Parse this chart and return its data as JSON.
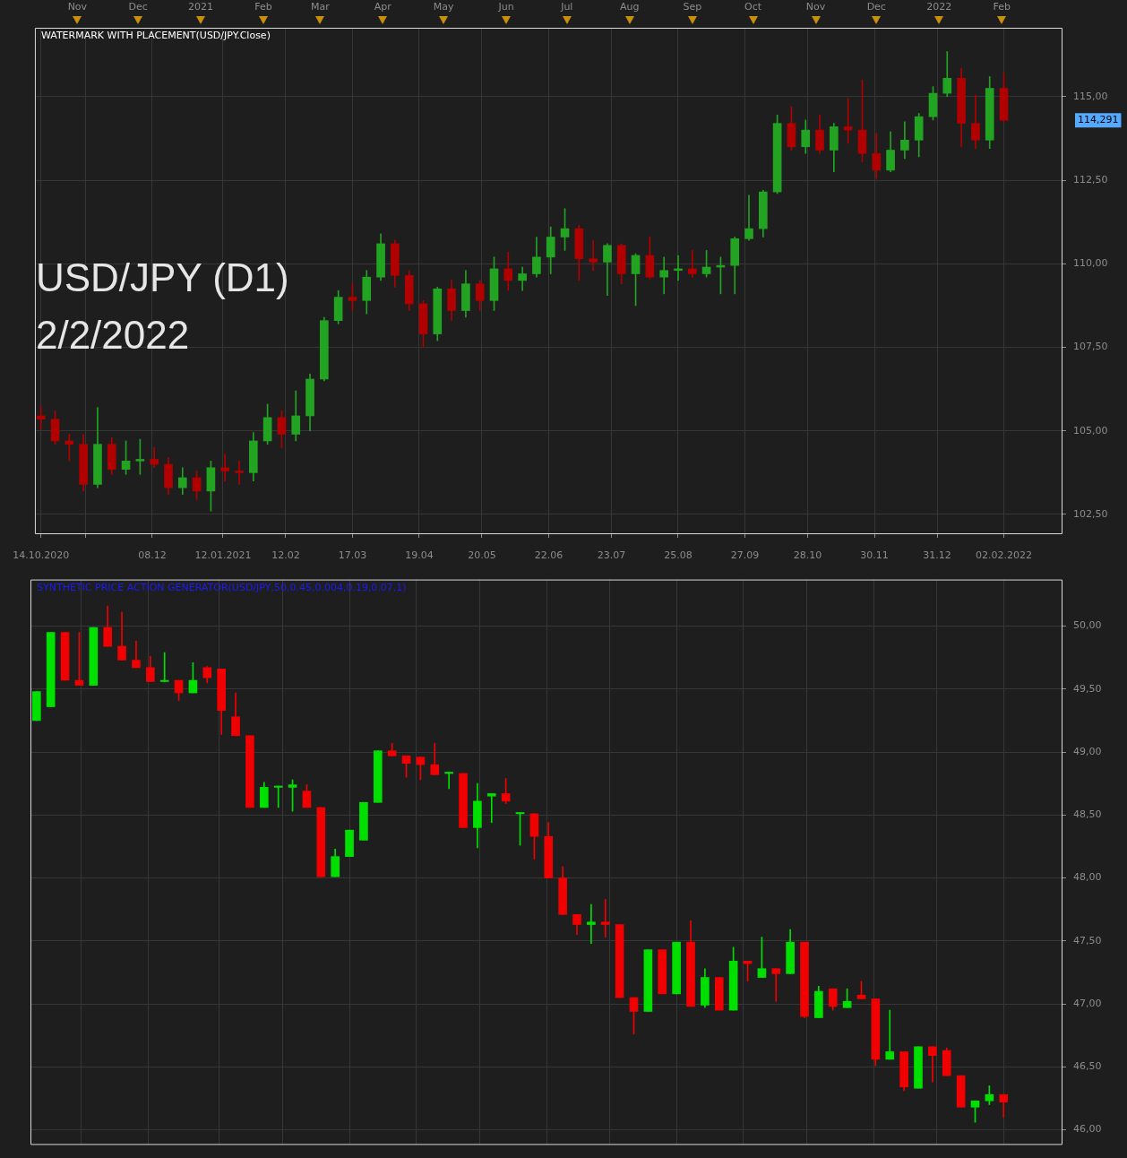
{
  "chart_data": [
    {
      "type": "candlestick",
      "title": "WATERMARK WITH PLACEMENT(USD/JPY.Close)",
      "x": [
        "2020-10-14",
        "2020-10-21",
        "2020-10-28",
        "2020-11-04",
        "2020-11-11",
        "2020-11-18",
        "2020-11-25",
        "2020-12-02",
        "2020-12-09",
        "2020-12-16",
        "2020-12-23",
        "2020-12-30",
        "2021-01-06",
        "2021-01-13",
        "2021-01-20",
        "2021-01-27",
        "2021-02-03",
        "2021-02-10",
        "2021-02-17",
        "2021-02-24",
        "2021-03-03",
        "2021-03-10",
        "2021-03-17",
        "2021-03-24",
        "2021-03-31",
        "2021-04-07",
        "2021-04-14",
        "2021-04-21",
        "2021-04-28",
        "2021-05-05",
        "2021-05-12",
        "2021-05-19",
        "2021-05-26",
        "2021-06-02",
        "2021-06-09",
        "2021-06-16",
        "2021-06-23",
        "2021-06-30",
        "2021-07-07",
        "2021-07-14",
        "2021-07-21",
        "2021-07-28",
        "2021-08-04",
        "2021-08-11",
        "2021-08-18",
        "2021-08-25",
        "2021-09-01",
        "2021-09-08",
        "2021-09-15",
        "2021-09-22",
        "2021-09-29",
        "2021-10-06",
        "2021-10-13",
        "2021-10-20",
        "2021-10-27",
        "2021-11-03",
        "2021-11-10",
        "2021-11-17",
        "2021-11-24",
        "2021-12-01",
        "2021-12-08",
        "2021-12-15",
        "2021-12-22",
        "2021-12-29",
        "2022-01-05",
        "2022-01-12",
        "2022-01-19",
        "2022-01-26",
        "2022-02-02"
      ],
      "ohlc": [
        [
          105.45,
          105.75,
          105.05,
          105.35
        ],
        [
          105.35,
          105.6,
          104.6,
          104.7
        ],
        [
          104.7,
          104.9,
          104.1,
          104.6
        ],
        [
          104.6,
          104.9,
          103.2,
          103.4
        ],
        [
          103.4,
          105.7,
          103.3,
          104.6
        ],
        [
          104.6,
          104.8,
          103.7,
          103.85
        ],
        [
          103.85,
          104.7,
          103.7,
          104.1
        ],
        [
          104.1,
          104.75,
          103.7,
          104.15
        ],
        [
          104.15,
          104.5,
          103.9,
          104.0
        ],
        [
          104.0,
          104.2,
          103.1,
          103.3
        ],
        [
          103.3,
          103.9,
          103.1,
          103.6
        ],
        [
          103.6,
          103.8,
          102.95,
          103.2
        ],
        [
          103.2,
          104.1,
          102.6,
          103.9
        ],
        [
          103.9,
          104.3,
          103.5,
          103.8
        ],
        [
          103.8,
          104.1,
          103.4,
          103.75
        ],
        [
          103.75,
          104.95,
          103.5,
          104.7
        ],
        [
          104.7,
          105.8,
          104.6,
          105.4
        ],
        [
          105.4,
          105.6,
          104.5,
          104.9
        ],
        [
          104.9,
          106.2,
          104.7,
          105.45
        ],
        [
          105.45,
          106.7,
          105.0,
          106.55
        ],
        [
          106.55,
          108.4,
          106.5,
          108.3
        ],
        [
          108.3,
          109.2,
          108.2,
          109.0
        ],
        [
          109.0,
          109.4,
          108.6,
          108.9
        ],
        [
          108.9,
          109.8,
          108.5,
          109.6
        ],
        [
          109.6,
          110.9,
          109.5,
          110.6
        ],
        [
          110.6,
          110.7,
          109.3,
          109.65
        ],
        [
          109.65,
          109.8,
          108.6,
          108.8
        ],
        [
          108.8,
          108.9,
          107.5,
          107.9
        ],
        [
          107.9,
          109.3,
          107.7,
          109.25
        ],
        [
          109.25,
          109.5,
          108.3,
          108.6
        ],
        [
          108.6,
          109.8,
          108.4,
          109.4
        ],
        [
          109.4,
          109.5,
          108.6,
          108.9
        ],
        [
          108.9,
          110.2,
          108.6,
          109.85
        ],
        [
          109.85,
          110.35,
          109.2,
          109.5
        ],
        [
          109.5,
          109.9,
          109.2,
          109.7
        ],
        [
          109.7,
          110.8,
          109.6,
          110.2
        ],
        [
          110.2,
          111.1,
          109.7,
          110.8
        ],
        [
          110.8,
          111.65,
          110.4,
          111.05
        ],
        [
          111.05,
          111.15,
          109.5,
          110.15
        ],
        [
          110.15,
          110.7,
          109.8,
          110.05
        ],
        [
          110.05,
          110.6,
          109.05,
          110.55
        ],
        [
          110.55,
          110.6,
          109.4,
          109.7
        ],
        [
          109.7,
          110.3,
          108.75,
          110.25
        ],
        [
          110.25,
          110.8,
          109.55,
          109.6
        ],
        [
          109.6,
          110.2,
          109.1,
          109.8
        ],
        [
          109.8,
          110.25,
          109.5,
          109.85
        ],
        [
          109.85,
          110.4,
          109.6,
          109.7
        ],
        [
          109.7,
          110.4,
          109.6,
          109.9
        ],
        [
          109.9,
          110.2,
          109.1,
          109.95
        ],
        [
          109.95,
          110.8,
          109.1,
          110.75
        ],
        [
          110.75,
          112.05,
          110.7,
          111.05
        ],
        [
          111.05,
          112.2,
          110.8,
          112.15
        ],
        [
          112.15,
          114.45,
          112.1,
          114.2
        ],
        [
          114.2,
          114.7,
          113.4,
          113.5
        ],
        [
          113.5,
          114.3,
          113.3,
          114.0
        ],
        [
          114.0,
          114.45,
          113.3,
          113.4
        ],
        [
          113.4,
          114.2,
          112.75,
          114.1
        ],
        [
          114.1,
          114.95,
          113.6,
          114.0
        ],
        [
          114.0,
          115.5,
          113.05,
          113.3
        ],
        [
          113.3,
          113.9,
          112.55,
          112.8
        ],
        [
          112.8,
          113.95,
          112.75,
          113.4
        ],
        [
          113.4,
          114.25,
          113.15,
          113.7
        ],
        [
          113.7,
          114.5,
          113.2,
          114.4
        ],
        [
          114.4,
          115.3,
          114.3,
          115.1
        ],
        [
          115.1,
          116.35,
          115.0,
          115.55
        ],
        [
          115.55,
          115.85,
          113.5,
          114.2
        ],
        [
          114.2,
          115.05,
          113.45,
          113.7
        ],
        [
          113.7,
          115.6,
          113.45,
          115.25
        ],
        [
          115.25,
          115.7,
          114.25,
          114.291
        ]
      ],
      "colors": [
        "#b00000",
        "#b00000",
        "#b00000",
        "#b00000",
        "#22a322",
        "#b00000",
        "#22a322",
        "#22a322",
        "#b00000",
        "#b00000",
        "#22a322",
        "#b00000",
        "#22a322",
        "#b00000",
        "#b00000",
        "#22a322",
        "#22a322",
        "#b00000",
        "#22a322",
        "#22a322",
        "#22a322",
        "#22a322",
        "#b00000",
        "#22a322",
        "#22a322",
        "#b00000",
        "#b00000",
        "#b00000",
        "#22a322",
        "#b00000",
        "#22a322",
        "#b00000",
        "#22a322",
        "#b00000",
        "#22a322",
        "#22a322",
        "#22a322",
        "#22a322",
        "#b00000",
        "#b00000",
        "#22a322",
        "#b00000",
        "#22a322",
        "#b00000",
        "#22a322",
        "#22a322",
        "#b00000",
        "#22a322",
        "#22a322",
        "#22a322",
        "#22a322",
        "#22a322",
        "#22a322",
        "#b00000",
        "#22a322",
        "#b00000",
        "#22a322",
        "#b00000",
        "#b00000",
        "#b00000",
        "#22a322",
        "#22a322",
        "#22a322",
        "#22a322",
        "#22a322",
        "#b00000",
        "#b00000",
        "#22a322",
        "#b00000"
      ],
      "xlim": [
        "2020-10-11",
        "2022-03-03"
      ],
      "xticks": [
        {
          "value": "2020-10-14",
          "label": "14.10.2020"
        },
        {
          "value": "2020-11-05",
          "label": null
        },
        {
          "value": "2020-12-08",
          "label": "08.12"
        },
        {
          "value": "2021-01-12",
          "label": "12.01.2021"
        },
        {
          "value": "2021-02-12",
          "label": "12.02"
        },
        {
          "value": "2021-03-17",
          "label": "17.03"
        },
        {
          "value": "2021-04-19",
          "label": "19.04"
        },
        {
          "value": "2021-05-20",
          "label": "20.05"
        },
        {
          "value": "2021-06-22",
          "label": "22.06"
        },
        {
          "value": "2021-07-23",
          "label": "23.07"
        },
        {
          "value": "2021-08-25",
          "label": "25.08"
        },
        {
          "value": "2021-09-27",
          "label": "27.09"
        },
        {
          "value": "2021-10-28",
          "label": "28.10"
        },
        {
          "value": "2021-11-30",
          "label": "30.11"
        },
        {
          "value": "2021-12-31",
          "label": "31.12"
        },
        {
          "value": "2022-02-02",
          "label": "02.02.2022"
        }
      ],
      "x2lim": [
        "2020-10-11",
        "2022-03-03"
      ],
      "x2ticks": [
        {
          "value": "2020-11-01",
          "label": "Nov"
        },
        {
          "value": "2020-12-01",
          "label": "Dec"
        },
        {
          "value": "2021-01-01",
          "label": "2021"
        },
        {
          "value": "2021-02-01",
          "label": "Feb"
        },
        {
          "value": "2021-03-01",
          "label": "Mar"
        },
        {
          "value": "2021-04-01",
          "label": "Apr"
        },
        {
          "value": "2021-05-01",
          "label": "May"
        },
        {
          "value": "2021-06-01",
          "label": "Jun"
        },
        {
          "value": "2021-07-01",
          "label": "Jul"
        },
        {
          "value": "2021-08-01",
          "label": "Aug"
        },
        {
          "value": "2021-09-01",
          "label": "Sep"
        },
        {
          "value": "2021-10-01",
          "label": "Oct"
        },
        {
          "value": "2021-11-01",
          "label": "Nov"
        },
        {
          "value": "2021-12-01",
          "label": "Dec"
        },
        {
          "value": "2022-01-01",
          "label": "2022"
        },
        {
          "value": "2022-02-01",
          "label": "Feb"
        }
      ],
      "ylim": [
        101.91,
        117.06
      ],
      "yticks": [
        {
          "value": 102.5,
          "label": "102,50"
        },
        {
          "value": 105,
          "label": "105,00"
        },
        {
          "value": 107.5,
          "label": "107,50"
        },
        {
          "value": 110,
          "label": "110,00"
        },
        {
          "value": 112.5,
          "label": "112,50"
        },
        {
          "value": 115,
          "label": "115,00"
        }
      ],
      "grid": true,
      "annotations": [
        "USD/JPY (D1)",
        "2/2/2022",
        "114,291"
      ]
    },
    {
      "type": "candlestick",
      "title": "SYNTHETIC PRICE ACTION GENERATOR(USD/JPY,50,0.45,0.004,0.19,0.07,1)",
      "x": [
        "2020-10-14",
        "2020-10-21",
        "2020-10-28",
        "2020-11-04",
        "2020-11-11",
        "2020-11-18",
        "2020-11-25",
        "2020-12-02",
        "2020-12-09",
        "2020-12-16",
        "2020-12-23",
        "2020-12-30",
        "2021-01-06",
        "2021-01-13",
        "2021-01-20",
        "2021-01-27",
        "2021-02-03",
        "2021-02-10",
        "2021-02-17",
        "2021-02-24",
        "2021-03-03",
        "2021-03-10",
        "2021-03-17",
        "2021-03-24",
        "2021-03-31",
        "2021-04-07",
        "2021-04-14",
        "2021-04-21",
        "2021-04-28",
        "2021-05-05",
        "2021-05-12",
        "2021-05-19",
        "2021-05-26",
        "2021-06-02",
        "2021-06-09",
        "2021-06-16",
        "2021-06-23",
        "2021-06-30",
        "2021-07-07",
        "2021-07-14",
        "2021-07-21",
        "2021-07-28",
        "2021-08-04",
        "2021-08-11",
        "2021-08-18",
        "2021-08-25",
        "2021-09-01",
        "2021-09-08",
        "2021-09-15",
        "2021-09-22",
        "2021-09-29",
        "2021-10-06",
        "2021-10-13",
        "2021-10-20",
        "2021-10-27",
        "2021-11-03",
        "2021-11-10",
        "2021-11-17",
        "2021-11-24",
        "2021-12-01",
        "2021-12-08",
        "2021-12-15",
        "2021-12-22",
        "2021-12-29",
        "2022-01-05",
        "2022-01-12",
        "2022-01-19",
        "2022-01-26",
        "2022-02-02"
      ],
      "ohlc": [
        [
          49.25,
          49.48,
          49.25,
          49.48
        ],
        [
          49.36,
          49.95,
          49.36,
          49.95
        ],
        [
          49.95,
          49.95,
          49.57,
          49.57
        ],
        [
          49.57,
          49.95,
          49.53,
          49.53
        ],
        [
          49.53,
          49.99,
          49.53,
          49.99
        ],
        [
          49.99,
          50.16,
          49.84,
          49.84
        ],
        [
          49.84,
          50.11,
          49.73,
          49.73
        ],
        [
          49.73,
          49.88,
          49.67,
          49.67
        ],
        [
          49.67,
          49.76,
          49.56,
          49.56
        ],
        [
          49.56,
          49.79,
          49.56,
          49.57
        ],
        [
          49.57,
          49.57,
          49.41,
          49.47
        ],
        [
          49.47,
          49.71,
          49.47,
          49.57
        ],
        [
          49.67,
          49.68,
          49.55,
          49.59
        ],
        [
          49.66,
          49.66,
          49.14,
          49.33
        ],
        [
          49.28,
          49.47,
          49.13,
          49.13
        ],
        [
          49.13,
          49.13,
          48.56,
          48.56
        ],
        [
          48.56,
          48.76,
          48.56,
          48.72
        ],
        [
          48.72,
          48.73,
          48.56,
          48.73
        ],
        [
          48.72,
          48.78,
          48.53,
          48.74
        ],
        [
          48.69,
          48.74,
          48.56,
          48.56
        ],
        [
          48.56,
          48.56,
          48.01,
          48.01
        ],
        [
          48.01,
          48.23,
          48.01,
          48.17
        ],
        [
          48.17,
          48.38,
          48.17,
          48.38
        ],
        [
          48.3,
          48.6,
          48.3,
          48.6
        ],
        [
          48.6,
          49.01,
          48.6,
          49.01
        ],
        [
          49.01,
          49.07,
          48.97,
          48.97
        ],
        [
          48.97,
          48.97,
          48.8,
          48.91
        ],
        [
          48.96,
          48.96,
          48.78,
          48.9
        ],
        [
          48.9,
          49.07,
          48.82,
          48.82
        ],
        [
          48.83,
          48.84,
          48.71,
          48.84
        ],
        [
          48.83,
          48.83,
          48.4,
          48.4
        ],
        [
          48.4,
          48.75,
          48.24,
          48.61
        ],
        [
          48.65,
          48.67,
          48.44,
          48.67
        ],
        [
          48.67,
          48.79,
          48.59,
          48.61
        ],
        [
          48.51,
          48.52,
          48.26,
          48.52
        ],
        [
          48.51,
          48.51,
          48.15,
          48.33
        ],
        [
          48.33,
          48.44,
          48.0,
          48.0
        ],
        [
          48.0,
          48.09,
          47.71,
          47.71
        ],
        [
          47.71,
          47.71,
          47.55,
          47.63
        ],
        [
          47.63,
          47.79,
          47.48,
          47.65
        ],
        [
          47.65,
          47.83,
          47.53,
          47.63
        ],
        [
          47.63,
          47.63,
          47.05,
          47.05
        ],
        [
          47.05,
          47.05,
          46.76,
          46.94
        ],
        [
          46.94,
          47.43,
          46.94,
          47.43
        ],
        [
          47.43,
          47.43,
          47.08,
          47.08
        ],
        [
          47.08,
          47.49,
          47.08,
          47.49
        ],
        [
          47.49,
          47.66,
          46.98,
          46.98
        ],
        [
          46.99,
          47.28,
          46.97,
          47.21
        ],
        [
          47.21,
          47.21,
          46.95,
          46.95
        ],
        [
          46.95,
          47.45,
          46.95,
          47.34
        ],
        [
          47.34,
          47.34,
          47.18,
          47.32
        ],
        [
          47.21,
          47.53,
          47.21,
          47.28
        ],
        [
          47.28,
          47.28,
          47.02,
          47.24
        ],
        [
          47.24,
          47.59,
          47.24,
          47.49
        ],
        [
          47.49,
          47.49,
          46.89,
          46.9
        ],
        [
          46.89,
          47.14,
          46.89,
          47.1
        ],
        [
          47.12,
          47.12,
          46.95,
          46.98
        ],
        [
          46.97,
          47.12,
          46.97,
          47.02
        ],
        [
          47.07,
          47.18,
          47.04,
          47.04
        ],
        [
          47.04,
          47.04,
          46.51,
          46.56
        ],
        [
          46.56,
          46.95,
          46.56,
          46.62
        ],
        [
          46.62,
          46.62,
          46.31,
          46.34
        ],
        [
          46.33,
          46.66,
          46.33,
          46.66
        ],
        [
          46.66,
          46.66,
          46.38,
          46.59
        ],
        [
          46.63,
          46.65,
          46.43,
          46.43
        ],
        [
          46.43,
          46.43,
          46.18,
          46.18
        ],
        [
          46.18,
          46.23,
          46.06,
          46.23
        ],
        [
          46.23,
          46.35,
          46.2,
          46.28
        ],
        [
          46.28,
          46.28,
          46.1,
          46.22
        ]
      ],
      "colors": [
        "#00e000",
        "#00e000",
        "#f00000",
        "#f00000",
        "#00e000",
        "#f00000",
        "#f00000",
        "#f00000",
        "#f00000",
        "#00e000",
        "#f00000",
        "#00e000",
        "#f00000",
        "#f00000",
        "#f00000",
        "#f00000",
        "#00e000",
        "#00e000",
        "#00e000",
        "#f00000",
        "#f00000",
        "#00e000",
        "#00e000",
        "#00e000",
        "#00e000",
        "#f00000",
        "#f00000",
        "#f00000",
        "#f00000",
        "#00e000",
        "#f00000",
        "#00e000",
        "#00e000",
        "#f00000",
        "#00e000",
        "#f00000",
        "#f00000",
        "#f00000",
        "#f00000",
        "#00e000",
        "#f00000",
        "#f00000",
        "#f00000",
        "#00e000",
        "#f00000",
        "#00e000",
        "#f00000",
        "#00e000",
        "#f00000",
        "#00e000",
        "#f00000",
        "#00e000",
        "#f00000",
        "#00e000",
        "#f00000",
        "#00e000",
        "#f00000",
        "#00e000",
        "#f00000",
        "#f00000",
        "#00e000",
        "#f00000",
        "#00e000",
        "#f00000",
        "#f00000",
        "#f00000",
        "#00e000",
        "#00e000",
        "#f00000"
      ],
      "xlim": [
        "2020-10-11",
        "2022-03-03"
      ],
      "xticks": [
        {
          "value": "2020-11-05",
          "label": null
        },
        {
          "value": "2020-12-08",
          "label": null
        },
        {
          "value": "2021-01-12",
          "label": null
        },
        {
          "value": "2021-02-12",
          "label": null
        },
        {
          "value": "2021-03-17",
          "label": null
        },
        {
          "value": "2021-04-19",
          "label": null
        },
        {
          "value": "2021-05-20",
          "label": null
        },
        {
          "value": "2021-06-22",
          "label": null
        },
        {
          "value": "2021-07-23",
          "label": null
        },
        {
          "value": "2021-08-25",
          "label": null
        },
        {
          "value": "2021-09-27",
          "label": null
        },
        {
          "value": "2021-10-28",
          "label": null
        },
        {
          "value": "2021-11-30",
          "label": null
        },
        {
          "value": "2021-12-31",
          "label": null
        },
        {
          "value": "2022-02-02",
          "label": null
        }
      ],
      "ylim": [
        45.88,
        50.37
      ],
      "yticks": [
        {
          "value": 46,
          "label": "46,00"
        },
        {
          "value": 46.5,
          "label": "46,50"
        },
        {
          "value": 47,
          "label": "47,00"
        },
        {
          "value": 47.5,
          "label": "47,50"
        },
        {
          "value": 48,
          "label": "48,00"
        },
        {
          "value": 48.5,
          "label": "48,50"
        },
        {
          "value": 49,
          "label": "49,00"
        },
        {
          "value": 49.5,
          "label": "49,50"
        },
        {
          "value": 50,
          "label": "50,00"
        }
      ],
      "grid": true,
      "tick_labels": "y"
    }
  ]
}
